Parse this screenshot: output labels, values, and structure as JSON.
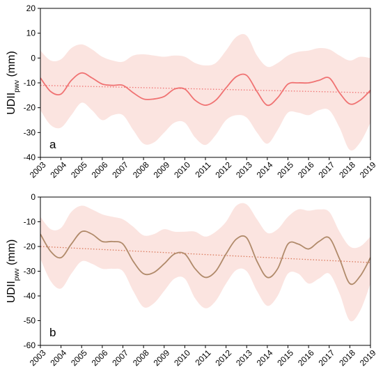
{
  "chart_data": [
    {
      "type": "line",
      "panel_label": "a",
      "ylabel": "UDII",
      "ylabel_sub": "pwv",
      "ylabel_unit": " (mm)",
      "x": [
        2003,
        2003.5,
        2004,
        2004.5,
        2005,
        2005.5,
        2006,
        2006.5,
        2007,
        2007.5,
        2008,
        2008.5,
        2009,
        2009.5,
        2010,
        2010.5,
        2011,
        2011.5,
        2012,
        2012.5,
        2013,
        2013.5,
        2014,
        2014.5,
        2015,
        2015.5,
        2016,
        2016.5,
        2017,
        2017.5,
        2018,
        2018.5,
        2019
      ],
      "xticks": [
        "2003",
        "2004",
        "2005",
        "2006",
        "2007",
        "2008",
        "2009",
        "2010",
        "2011",
        "2012",
        "2013",
        "2014",
        "2015",
        "2016",
        "2017",
        "2018",
        "2019"
      ],
      "xlim": [
        2003,
        2019
      ],
      "ylim": [
        -40,
        20
      ],
      "yticks": [
        "20",
        "10",
        "0",
        "-10",
        "-20",
        "-30",
        "-40"
      ],
      "series": [
        {
          "role": "mean",
          "color": "#f07272",
          "values": [
            -8,
            -13.5,
            -14.5,
            -9,
            -6,
            -8,
            -10.5,
            -11,
            -11,
            -14,
            -16.5,
            -16.5,
            -15.5,
            -12.5,
            -12.5,
            -17,
            -19,
            -17,
            -12,
            -7.5,
            -7,
            -13.5,
            -19,
            -16,
            -10.5,
            -10,
            -10,
            -9,
            -8,
            -14,
            -18.5,
            -17,
            -13
          ]
        },
        {
          "role": "upper",
          "color": "#fbe4e0",
          "values": [
            3,
            -1,
            -0.5,
            4,
            5.5,
            3.5,
            0.5,
            -1,
            -1.5,
            1,
            1.5,
            1,
            0.5,
            1,
            0.5,
            -2,
            -3,
            -2,
            3,
            8.5,
            9,
            1,
            -3.5,
            -2,
            1,
            2.5,
            3,
            4,
            3.5,
            1,
            -1,
            0.5,
            0
          ]
        },
        {
          "role": "lower",
          "color": "#fbe4e0",
          "values": [
            -21,
            -27,
            -28,
            -23,
            -18,
            -21,
            -25,
            -23,
            -23,
            -29,
            -34.5,
            -34,
            -30,
            -26,
            -26,
            -32,
            -35,
            -31,
            -25,
            -23,
            -24,
            -30,
            -34.5,
            -29,
            -22,
            -22,
            -23,
            -21,
            -21,
            -28,
            -37,
            -34,
            -26
          ]
        },
        {
          "role": "trend",
          "color": "#f07272",
          "from": [
            2003,
            -11
          ],
          "to": [
            2019,
            -14
          ]
        }
      ]
    },
    {
      "type": "line",
      "panel_label": "b",
      "ylabel": "UDII",
      "ylabel_sub": "pwv",
      "ylabel_unit": " (mm)",
      "x": [
        2003,
        2003.5,
        2004,
        2004.5,
        2005,
        2005.5,
        2006,
        2006.5,
        2007,
        2007.5,
        2008,
        2008.5,
        2009,
        2009.5,
        2010,
        2010.5,
        2011,
        2011.5,
        2012,
        2012.5,
        2013,
        2013.5,
        2014,
        2014.5,
        2015,
        2015.5,
        2016,
        2016.5,
        2017,
        2017.5,
        2018,
        2018.5,
        2019
      ],
      "xticks": [
        "2003",
        "2004",
        "2005",
        "2006",
        "2007",
        "2008",
        "2009",
        "2010",
        "2011",
        "2012",
        "2013",
        "2014",
        "2015",
        "2016",
        "2017",
        "2018",
        "2019"
      ],
      "xlim": [
        2003,
        2019
      ],
      "ylim": [
        -60,
        0
      ],
      "yticks": [
        "0",
        "-10",
        "-20",
        "-30",
        "-40",
        "-50",
        "-60"
      ],
      "series": [
        {
          "role": "mean",
          "color": "#b08a6a",
          "values": [
            -15,
            -22,
            -24.5,
            -19,
            -14,
            -15,
            -18,
            -18,
            -19,
            -26,
            -31,
            -30.5,
            -27,
            -23,
            -23,
            -29,
            -32.5,
            -30,
            -23,
            -17,
            -16.5,
            -26,
            -32.5,
            -29,
            -19,
            -19,
            -21,
            -18,
            -16.5,
            -25,
            -35,
            -32,
            -24.5
          ]
        },
        {
          "role": "upper",
          "color": "#fbe4e0",
          "values": [
            -8,
            -13,
            -12.5,
            -6,
            -3.5,
            -5,
            -7,
            -8,
            -9,
            -12,
            -15.5,
            -15,
            -13,
            -14,
            -14,
            -14,
            -16,
            -14,
            -10,
            -3.5,
            -3,
            -9,
            -14.5,
            -13,
            -8,
            -5,
            -5.5,
            -5,
            -6,
            -14,
            -20,
            -20,
            -16
          ]
        },
        {
          "role": "lower",
          "color": "#fbe4e0",
          "values": [
            -25,
            -34,
            -37,
            -31,
            -26,
            -27,
            -29,
            -29,
            -30,
            -38,
            -44.5,
            -43,
            -38,
            -33,
            -33,
            -41,
            -45,
            -42,
            -35,
            -29.5,
            -30,
            -38,
            -44,
            -40,
            -31,
            -31,
            -35,
            -33,
            -31,
            -39,
            -50,
            -46,
            -35
          ]
        },
        {
          "role": "trend",
          "color": "#d9785a",
          "from": [
            2003,
            -20
          ],
          "to": [
            2019,
            -26.5
          ]
        }
      ]
    }
  ]
}
